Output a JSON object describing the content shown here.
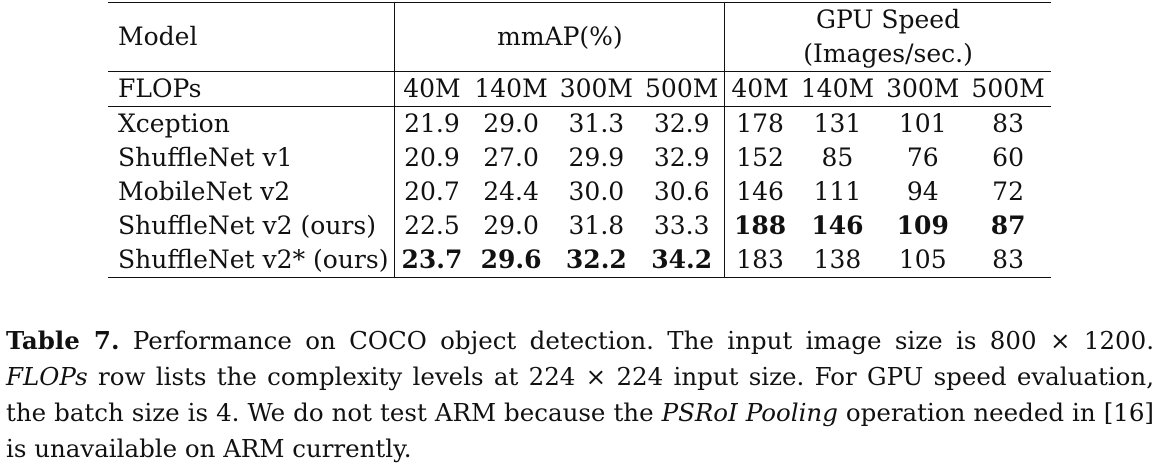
{
  "table": {
    "col_model": "Model",
    "group_mmap": "mmAP(%)",
    "group_gpu_line1": "GPU Speed",
    "group_gpu_line2": "(Images/sec.)",
    "flops_label": "FLOPs",
    "flops_levels": [
      "40M",
      "140M",
      "300M",
      "500M",
      "40M",
      "140M",
      "300M",
      "500M"
    ],
    "rows": [
      {
        "model": "Xception",
        "values": [
          "21.9",
          "29.0",
          "31.3",
          "32.9",
          "178",
          "131",
          "101",
          "83"
        ],
        "bold": [
          false,
          false,
          false,
          false,
          false,
          false,
          false,
          false
        ]
      },
      {
        "model": "ShuffleNet v1",
        "values": [
          "20.9",
          "27.0",
          "29.9",
          "32.9",
          "152",
          "85",
          "76",
          "60"
        ],
        "bold": [
          false,
          false,
          false,
          false,
          false,
          false,
          false,
          false
        ]
      },
      {
        "model": "MobileNet v2",
        "values": [
          "20.7",
          "24.4",
          "30.0",
          "30.6",
          "146",
          "111",
          "94",
          "72"
        ],
        "bold": [
          false,
          false,
          false,
          false,
          false,
          false,
          false,
          false
        ]
      },
      {
        "model": "ShuffleNet v2 (ours)",
        "values": [
          "22.5",
          "29.0",
          "31.8",
          "33.3",
          "188",
          "146",
          "109",
          "87"
        ],
        "bold": [
          false,
          false,
          false,
          false,
          true,
          true,
          true,
          true
        ]
      },
      {
        "model": "ShuffleNet v2* (ours)",
        "values": [
          "23.7",
          "29.6",
          "32.2",
          "34.2",
          "183",
          "138",
          "105",
          "83"
        ],
        "bold": [
          true,
          true,
          true,
          true,
          false,
          false,
          false,
          false
        ]
      }
    ]
  },
  "caption": {
    "label": "Table 7.",
    "seg1": " Performance on COCO object detection. The input image size is 800 × 1200. ",
    "ital1": "FLOPs",
    "seg2": " row lists the complexity levels at 224 × 224 input size. For GPU speed evaluation, the batch size is 4. We do not test ARM because the ",
    "ital2": "PSRoI Pooling",
    "seg3": " operation needed in [16] is unavailable on ARM currently."
  }
}
